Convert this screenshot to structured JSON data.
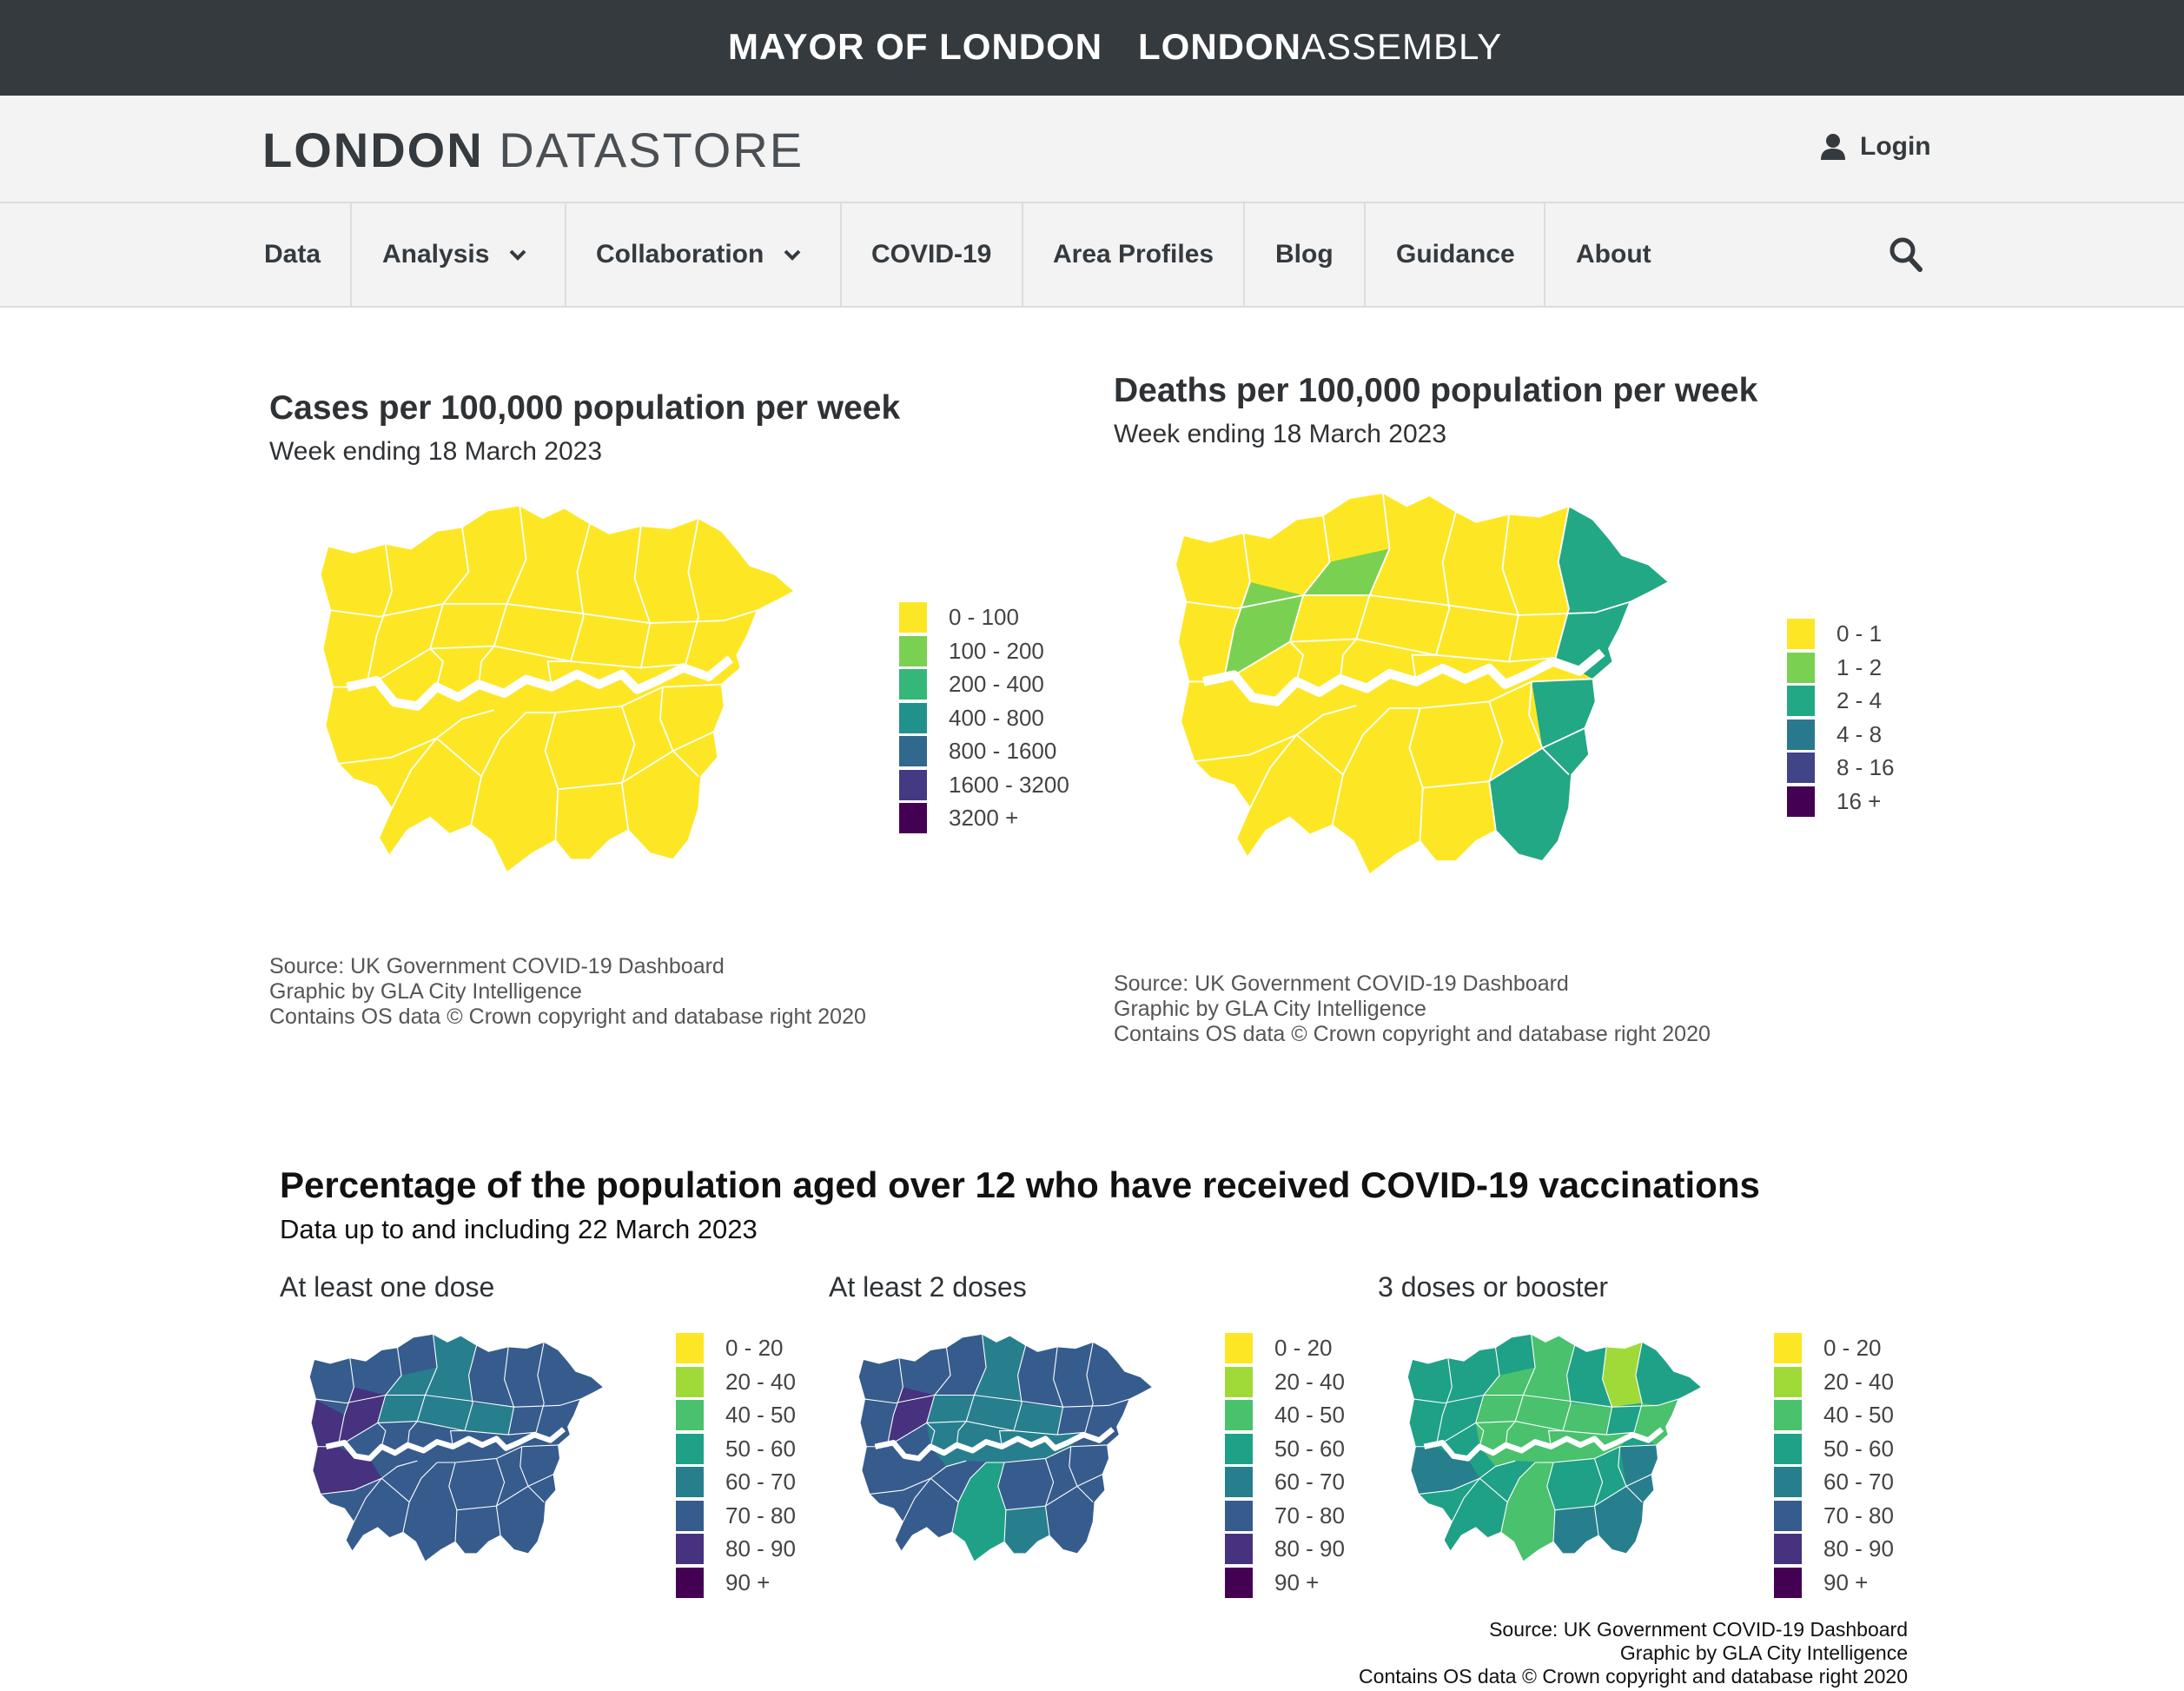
{
  "topbar": {
    "mayor": "MAYOR OF LONDON",
    "assembly_bold": "LONDON",
    "assembly_light": "ASSEMBLY"
  },
  "header": {
    "logo_bold": "LONDON",
    "logo_light": "DATASTORE",
    "login": "Login",
    "login_icon": "user-icon"
  },
  "nav": {
    "items": [
      "Data",
      "Analysis",
      "Collaboration",
      "COVID-19",
      "Area Profiles",
      "Blog",
      "Guidance",
      "About"
    ],
    "search_icon": "search-icon"
  },
  "cases": {
    "title": "Cases per 100,000 population per week",
    "subtitle": "Week ending 18 March 2023",
    "legend": [
      {
        "label": "0 - 100",
        "color": "#fde725"
      },
      {
        "label": "100 - 200",
        "color": "#7ad151"
      },
      {
        "label": "200 - 400",
        "color": "#35b779"
      },
      {
        "label": "400 - 800",
        "color": "#21918c"
      },
      {
        "label": "800 - 1600",
        "color": "#31688e"
      },
      {
        "label": "1600 - 3200",
        "color": "#443983"
      },
      {
        "label": "3200 +",
        "color": "#440154"
      }
    ],
    "source": [
      "Source: UK Government COVID-19 Dashboard",
      "Graphic by GLA City Intelligence",
      "Contains OS data © Crown copyright and database right 2020"
    ]
  },
  "deaths": {
    "title": "Deaths per 100,000 population per week",
    "subtitle": "Week ending 18 March 2023",
    "legend": [
      {
        "label": "0 - 1",
        "color": "#fde725"
      },
      {
        "label": "1 - 2",
        "color": "#7ad151"
      },
      {
        "label": "2 - 4",
        "color": "#22a884"
      },
      {
        "label": "4 - 8",
        "color": "#2a788e"
      },
      {
        "label": "8 - 16",
        "color": "#414487"
      },
      {
        "label": "16 +",
        "color": "#440154"
      }
    ],
    "source": [
      "Source: UK Government COVID-19 Dashboard",
      "Graphic by GLA City Intelligence",
      "Contains OS data © Crown copyright and database right 2020"
    ]
  },
  "vaccinations": {
    "title": "Percentage of the population aged over 12 who have received COVID-19 vaccinations",
    "subtitle": "Data up to and including 22 March 2023",
    "panels": [
      "At least one dose",
      "At least 2 doses",
      "3 doses or booster"
    ],
    "legend": [
      {
        "label": "0 - 20",
        "color": "#fde725"
      },
      {
        "label": "20 - 40",
        "color": "#a0da39"
      },
      {
        "label": "40 - 50",
        "color": "#4ac16d"
      },
      {
        "label": "50 - 60",
        "color": "#1fa187"
      },
      {
        "label": "60 - 70",
        "color": "#277f8e"
      },
      {
        "label": "70 - 80",
        "color": "#365c8d"
      },
      {
        "label": "80 - 90",
        "color": "#46327e"
      },
      {
        "label": "90 +",
        "color": "#440154"
      }
    ],
    "source": [
      "Source: UK Government COVID-19 Dashboard",
      "Graphic by GLA City Intelligence",
      "Contains OS data © Crown copyright and database right 2020"
    ]
  }
}
